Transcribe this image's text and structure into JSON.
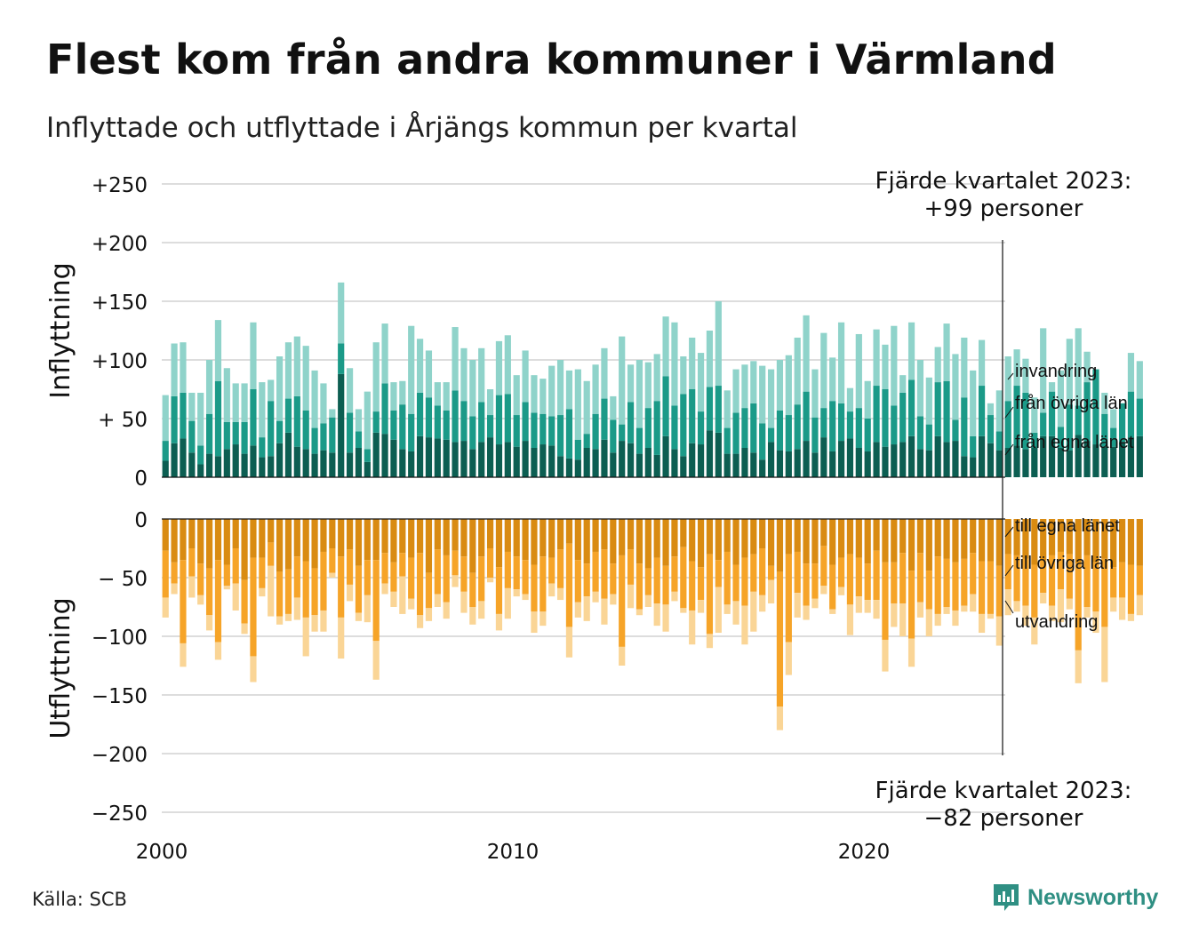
{
  "title": "Flest kom från andra kommuner i Värmland",
  "subtitle": "Inflyttade och utflyttade i Årjängs kommun per kvartal",
  "source": "Källa: SCB",
  "brand": {
    "name": "Newsworthy",
    "icon": "newsworthy-logo-icon",
    "color": "#2f8f83"
  },
  "colors": {
    "in_egna": "#0c5e52",
    "in_ovriga": "#1b9a88",
    "in_invandring": "#8fd3ca",
    "out_egna": "#d98b12",
    "out_ovriga": "#f6a428",
    "out_utvandring": "#fad596",
    "grid": "#dddddd"
  },
  "annotations": {
    "top_line1": "Fjärde kvartalet 2023:",
    "top_line2": "+99 personer",
    "bottom_line1": "Fjärde kvartalet 2023:",
    "bottom_line2": "−82 personer"
  },
  "chart_data": [
    {
      "type": "bar",
      "stacked": true,
      "ylabel": "Inflyttning",
      "ylim": [
        0,
        250
      ],
      "yticks": [
        0,
        50,
        100,
        150,
        200,
        250
      ],
      "ytick_labels": [
        "0",
        "+ 50",
        "+100",
        "+150",
        "+200",
        "+250"
      ],
      "x_start": 2000,
      "x_ticks": [
        "2000",
        "2010",
        "2020"
      ],
      "grid": true,
      "legend": "inline-right",
      "series": [
        {
          "name": "från egna länet",
          "values": [
            14,
            29,
            33,
            21,
            11,
            20,
            18,
            24,
            28,
            20,
            27,
            17,
            18,
            29,
            38,
            26,
            24,
            20,
            23,
            21,
            88,
            21,
            25,
            13,
            38,
            37,
            32,
            24,
            22,
            35,
            34,
            33,
            32,
            30,
            31,
            24,
            30,
            34,
            28,
            30,
            26,
            31,
            25,
            28,
            27,
            18,
            16,
            15,
            25,
            24,
            32,
            21,
            31,
            29,
            20,
            25,
            19,
            35,
            24,
            18,
            29,
            28,
            40,
            38,
            20,
            20,
            25,
            21,
            15,
            30,
            23,
            22,
            24,
            31,
            21,
            34,
            22,
            31,
            33,
            25,
            22,
            30,
            26,
            28,
            30,
            35,
            24,
            23,
            35,
            30,
            31,
            18,
            17,
            35,
            29,
            23,
            25,
            27,
            24,
            25,
            35,
            35,
            25,
            23,
            36,
            31,
            28,
            26,
            26,
            30,
            34,
            35
          ]
        },
        {
          "name": "från övriga län",
          "values": [
            17,
            40,
            39,
            27,
            16,
            34,
            64,
            23,
            19,
            27,
            48,
            17,
            47,
            19,
            29,
            43,
            33,
            22,
            23,
            30,
            26,
            34,
            14,
            11,
            18,
            43,
            25,
            38,
            32,
            37,
            34,
            28,
            25,
            44,
            34,
            28,
            34,
            19,
            42,
            41,
            27,
            33,
            30,
            26,
            25,
            35,
            42,
            17,
            12,
            30,
            35,
            28,
            14,
            35,
            22,
            34,
            46,
            51,
            37,
            53,
            46,
            28,
            37,
            40,
            22,
            35,
            34,
            42,
            31,
            12,
            34,
            31,
            38,
            42,
            30,
            25,
            43,
            32,
            23,
            34,
            28,
            48,
            49,
            33,
            42,
            48,
            28,
            22,
            46,
            52,
            18,
            50,
            18,
            43,
            24,
            16,
            40,
            51,
            48,
            13,
            20,
            38,
            18,
            39,
            25,
            50,
            64,
            28,
            16,
            33,
            39,
            32
          ]
        },
        {
          "name": "invandring",
          "values": [
            39,
            45,
            43,
            24,
            45,
            46,
            52,
            46,
            33,
            33,
            57,
            47,
            18,
            55,
            48,
            51,
            55,
            49,
            34,
            7,
            52,
            38,
            19,
            49,
            59,
            51,
            24,
            20,
            75,
            46,
            40,
            20,
            24,
            54,
            45,
            48,
            46,
            22,
            46,
            50,
            34,
            44,
            32,
            30,
            43,
            47,
            33,
            60,
            45,
            42,
            43,
            20,
            75,
            32,
            58,
            39,
            40,
            51,
            71,
            32,
            44,
            50,
            48,
            72,
            32,
            37,
            37,
            36,
            49,
            50,
            43,
            51,
            57,
            65,
            41,
            64,
            37,
            69,
            20,
            63,
            32,
            48,
            38,
            68,
            15,
            49,
            48,
            40,
            30,
            49,
            56,
            51,
            56,
            39,
            10,
            35,
            38,
            31,
            29,
            30,
            72,
            8,
            48,
            56,
            66,
            26,
            0,
            18,
            16,
            0,
            33,
            32
          ]
        }
      ]
    },
    {
      "type": "bar",
      "stacked": true,
      "ylabel": "Utflyttning",
      "ylim": [
        -250,
        0
      ],
      "yticks": [
        0,
        -50,
        -100,
        -150,
        -200,
        -250
      ],
      "ytick_labels": [
        "0",
        "− 50",
        "−100",
        "−150",
        "−200",
        "−250"
      ],
      "x_start": 2000,
      "x_ticks": [
        "2000",
        "2010",
        "2020"
      ],
      "grid": true,
      "legend": "inline-right",
      "series": [
        {
          "name": "till egna länet",
          "values": [
            -27,
            -37,
            -35,
            -25,
            -38,
            -42,
            -35,
            -39,
            -25,
            -52,
            -33,
            -33,
            -20,
            -45,
            -43,
            -32,
            -36,
            -42,
            -28,
            -25,
            -32,
            -26,
            -40,
            -35,
            -35,
            -29,
            -37,
            -29,
            -33,
            -29,
            -46,
            -26,
            -31,
            -27,
            -32,
            -46,
            -32,
            -25,
            -41,
            -28,
            -32,
            -35,
            -39,
            -32,
            -33,
            -26,
            -21,
            -35,
            -38,
            -28,
            -26,
            -38,
            -31,
            -26,
            -38,
            -42,
            -33,
            -40,
            -32,
            -24,
            -36,
            -41,
            -30,
            -35,
            -28,
            -39,
            -33,
            -30,
            -25,
            -40,
            -45,
            -30,
            -28,
            -38,
            -38,
            -23,
            -39,
            -33,
            -30,
            -33,
            -38,
            -27,
            -37,
            -37,
            -29,
            -44,
            -29,
            -44,
            -32,
            -34,
            -37,
            -34,
            -29,
            -36,
            -36,
            -40,
            -30,
            -31,
            -34,
            -39,
            -35,
            -31,
            -28,
            -30,
            -38,
            -31,
            -37,
            -34,
            -41,
            -37,
            -39,
            -40
          ]
        },
        {
          "name": "till övriga län",
          "values": [
            -40,
            -18,
            -71,
            -24,
            -27,
            -40,
            -70,
            -18,
            -30,
            -37,
            -84,
            -26,
            -20,
            -38,
            -38,
            -35,
            -48,
            -40,
            -50,
            -21,
            -52,
            -30,
            -40,
            -30,
            -69,
            -26,
            -25,
            -20,
            -35,
            -53,
            -30,
            -38,
            -40,
            -21,
            -30,
            -29,
            -38,
            -25,
            -40,
            -31,
            -28,
            -29,
            -40,
            -47,
            -22,
            -33,
            -71,
            -36,
            -28,
            -34,
            -42,
            -26,
            -78,
            -30,
            -39,
            -23,
            -39,
            -33,
            -30,
            -52,
            -42,
            -28,
            -68,
            -23,
            -45,
            -31,
            -41,
            -32,
            -40,
            -12,
            -115,
            -75,
            -35,
            -36,
            -30,
            -34,
            -38,
            -25,
            -43,
            -33,
            -31,
            -42,
            -66,
            -35,
            -43,
            -58,
            -42,
            -33,
            -49,
            -41,
            -41,
            -40,
            -35,
            -45,
            -45,
            -43,
            -30,
            -39,
            -40,
            -45,
            -28,
            -43,
            -32,
            -38,
            -74,
            -44,
            -42,
            -58,
            -26,
            -30,
            -42,
            -25
          ]
        },
        {
          "name": "utvandring",
          "values": [
            -17,
            -9,
            -20,
            -18,
            -8,
            -13,
            -15,
            -3,
            -23,
            -9,
            -22,
            -7,
            -43,
            -7,
            -6,
            -19,
            -33,
            -14,
            -18,
            -4,
            -35,
            -14,
            -7,
            -23,
            -33,
            -9,
            -13,
            -32,
            -9,
            -11,
            -11,
            -11,
            -14,
            -10,
            -18,
            -15,
            -15,
            -4,
            -14,
            -26,
            -6,
            -5,
            -18,
            -12,
            -11,
            -10,
            -26,
            -13,
            -21,
            -9,
            -22,
            -9,
            -16,
            -20,
            -5,
            -10,
            -19,
            -23,
            -8,
            -4,
            -29,
            -11,
            -12,
            -39,
            -8,
            -20,
            -33,
            -34,
            -14,
            -20,
            -20,
            -28,
            -21,
            -12,
            -8,
            -7,
            -4,
            -7,
            -26,
            -14,
            -11,
            -16,
            -27,
            -20,
            -28,
            -24,
            -13,
            -23,
            -10,
            -6,
            -13,
            -5,
            -15,
            -16,
            -4,
            -25,
            -22,
            -9,
            -17,
            -23,
            -9,
            -13,
            -28,
            -9,
            -28,
            -9,
            -18,
            -47,
            -12,
            -19,
            -6,
            -17
          ]
        }
      ]
    }
  ]
}
